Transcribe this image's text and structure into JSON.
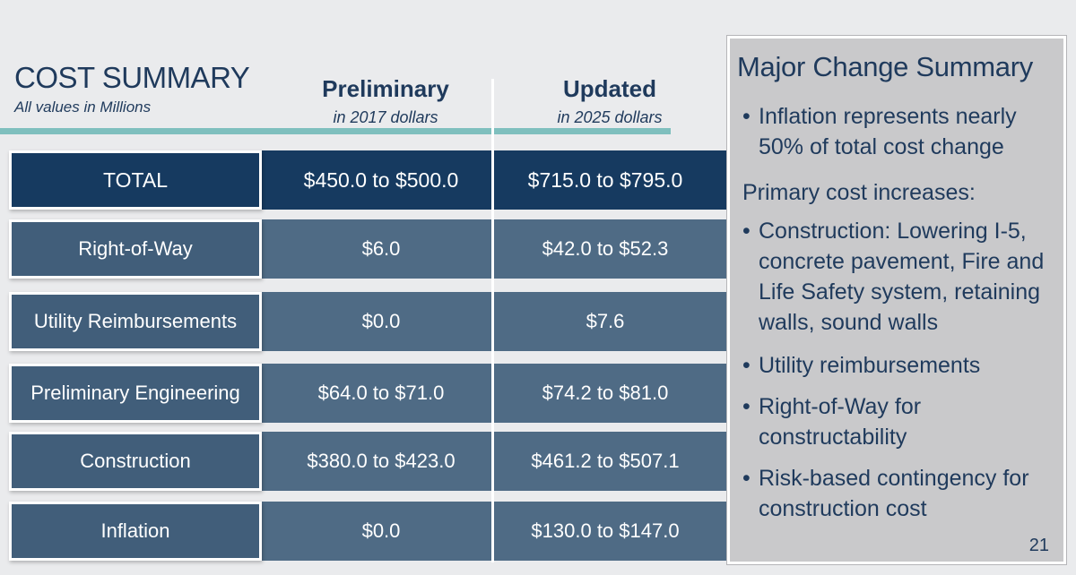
{
  "header": {
    "title": "COST SUMMARY",
    "subtitle": "All values in Millions"
  },
  "columns": [
    {
      "heading": "Preliminary",
      "subheading": "in 2017 dollars"
    },
    {
      "heading": "Updated",
      "subheading": "in 2025 dollars"
    }
  ],
  "rows": [
    {
      "label": "TOTAL",
      "preliminary": "$450.0 to $500.0",
      "updated": "$715.0 to $795.0"
    },
    {
      "label": "Right-of-Way",
      "preliminary": "$6.0",
      "updated": "$42.0 to $52.3"
    },
    {
      "label": "Utility Reimbursements",
      "preliminary": "$0.0",
      "updated": "$7.6"
    },
    {
      "label": "Preliminary Engineering",
      "preliminary": "$64.0 to $71.0",
      "updated": "$74.2 to $81.0"
    },
    {
      "label": "Construction",
      "preliminary": "$380.0 to $423.0",
      "updated": "$461.2 to $507.1"
    },
    {
      "label": "Inflation",
      "preliminary": "$0.0",
      "updated": "$130.0 to $147.0"
    }
  ],
  "summary": {
    "title": "Major Change Summary",
    "items": [
      "Inflation represents nearly 50% of total cost change",
      "Primary cost increases:",
      "Construction: Lowering I-5, concrete pavement, Fire and Life Safety system, retaining walls, sound walls",
      "Utility reimbursements",
      "Right-of-Way for constructability",
      "Risk-based contingency for construction cost"
    ],
    "page_number": "21"
  },
  "colors": {
    "total_row": "#163a60",
    "other_rows": "#4f6b85",
    "accent_line": "#7fbfbe",
    "text_dark": "#1f3a5c"
  }
}
